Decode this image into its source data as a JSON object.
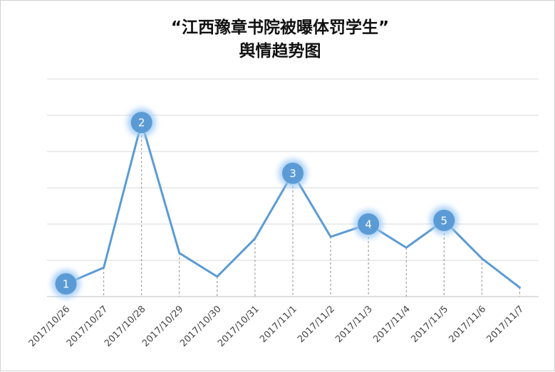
{
  "chart_data": {
    "type": "line",
    "title_line1": "“江西豫章书院被曝体罚学生”",
    "title_line2": "舆情趋势图",
    "categories": [
      "2017/10/26",
      "2017/10/27",
      "2017/10/28",
      "2017/10/29",
      "2017/10/30",
      "2017/10/31",
      "2017/11/1",
      "2017/11/2",
      "2017/11/3",
      "2017/11/4",
      "2017/11/5",
      "2017/11/6",
      "2017/11/7"
    ],
    "values": [
      0.35,
      0.8,
      4.8,
      1.2,
      0.55,
      1.6,
      3.4,
      1.65,
      2.0,
      1.35,
      2.1,
      1.05,
      0.25
    ],
    "ylim": [
      0,
      6
    ],
    "grid": true,
    "line_color": "#5b9bd5",
    "markers": [
      {
        "index": 0,
        "label": "1"
      },
      {
        "index": 2,
        "label": "2"
      },
      {
        "index": 6,
        "label": "3"
      },
      {
        "index": 8,
        "label": "4"
      },
      {
        "index": 10,
        "label": "5"
      }
    ]
  }
}
